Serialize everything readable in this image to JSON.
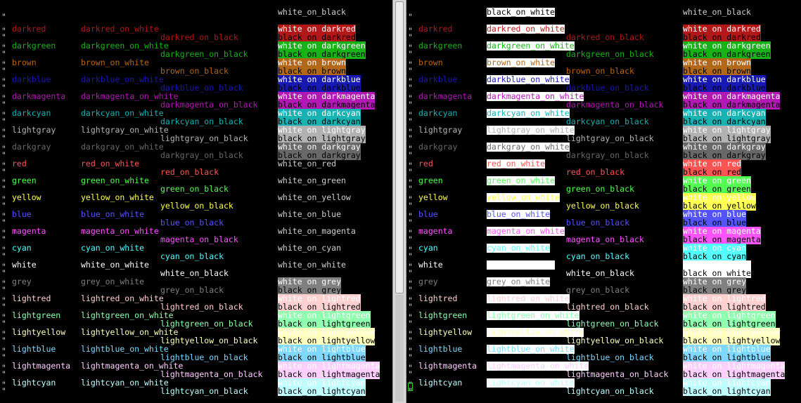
{
  "colors": {
    "black": "#000000",
    "white": "#ffffff",
    "darkred": "#b21818",
    "darkgreen": "#18b218",
    "brown": "#b26818",
    "darkblue": "#1818b2",
    "darkmagenta": "#b218b2",
    "darkcyan": "#18b2b2",
    "lightgray": "#b2b2b2",
    "darkgray": "#686868",
    "red": "#ff5454",
    "green": "#54ff54",
    "yellow": "#ffff54",
    "blue": "#5454ff",
    "magenta": "#ff54ff",
    "cyan": "#54ffff",
    "grey": "#808080",
    "lightred": "#ffd0d0",
    "lightgreen": "#90ffb0",
    "lightyellow": "#ffffc0",
    "lightblue": "#80d8ff",
    "lightmagenta": "#ffd0ff",
    "lightcyan": "#c0ffff",
    "default_fg": "#cfcfcf"
  },
  "panes": [
    {
      "name": "left",
      "top_header": "",
      "top_header_right": "white_on_black",
      "rows": [
        {
          "a": "darkred",
          "b": "darkred_on_white",
          "c": "darkred_on_black",
          "d1": "white_on_darkred",
          "d2": "black_on_darkred"
        },
        {
          "a": "darkgreen",
          "b": "darkgreen_on_white",
          "c": "darkgreen_on_black",
          "d1": "white_on_darkgreen",
          "d2": "black_on_darkgreen"
        },
        {
          "a": "brown",
          "b": "brown_on_white",
          "c": "brown_on_black",
          "d1": "white_on_brown",
          "d2": "black_on_brown"
        },
        {
          "a": "darkblue",
          "b": "darkblue_on_white",
          "c": "darkblue_on_black",
          "d1": "white_on_darkblue",
          "d2": "black_on_darkblue"
        },
        {
          "a": "darkmagenta",
          "b": "darkmagenta_on_white",
          "c": "darkmagenta_on_black",
          "d1": "white_on_darkmagenta",
          "d2": "black_on_darkmagenta"
        },
        {
          "a": "darkcyan",
          "b": "darkcyan_on_white",
          "c": "darkcyan_on_black",
          "d1": "white_on_darkcyan",
          "d2": "black_on_darkcyan"
        },
        {
          "a": "lightgray",
          "b": "lightgray_on_white",
          "c": "lightgray_on_black",
          "d1": "white_on_lightgray",
          "d2": "black_on_lightgray"
        },
        {
          "a": "darkgray",
          "b": "darkgray_on_white",
          "c": "darkgray_on_black",
          "d1": "white_on_darkgray",
          "d2": "black_on_darkgray"
        },
        {
          "a": "red",
          "b": "red_on_white",
          "c": "red_on_black",
          "d1": "white_on_red",
          "d2": "black_on_red"
        },
        {
          "a": "green",
          "b": "green_on_white",
          "c": "green_on_black",
          "d1": "white_on_green",
          "d2": "black_on_green"
        },
        {
          "a": "yellow",
          "b": "yellow_on_white",
          "c": "yellow_on_black",
          "d1": "white_on_yellow",
          "d2": "black_on_yellow"
        },
        {
          "a": "blue",
          "b": "blue_on_white",
          "c": "blue_on_black",
          "d1": "white_on_blue",
          "d2": "black_on_blue"
        },
        {
          "a": "magenta",
          "b": "magenta_on_white",
          "c": "magenta_on_black",
          "d1": "white_on_magenta",
          "d2": "black_on_magenta"
        },
        {
          "a": "cyan",
          "b": "cyan_on_white",
          "c": "cyan_on_black",
          "d1": "white_on_cyan",
          "d2": "black_on_cyan"
        },
        {
          "a": "white",
          "b": "white_on_white",
          "c": "white_on_black",
          "d1": "white_on_white",
          "d2": "black_on_white"
        },
        {
          "a": "grey",
          "b": "grey_on_white",
          "c": "grey_on_black",
          "d1": "white_on_grey",
          "d2": "black_on_grey"
        },
        {
          "a": "lightred",
          "b": "lightred_on_white",
          "c": "lightred_on_black",
          "d1": "white_on_lightred",
          "d2": "black_on_lightred"
        },
        {
          "a": "lightgreen",
          "b": "lightgreen_on_white",
          "c": "lightgreen_on_black",
          "d1": "white_on_lightgreen",
          "d2": "black_on_lightgreen"
        },
        {
          "a": "lightyellow",
          "b": "lightyellow_on_white",
          "c": "lightyellow_on_black",
          "d1": "white_on_lightyellow",
          "d2": "black_on_lightyellow"
        },
        {
          "a": "lightblue",
          "b": "lightblue_on_white",
          "c": "lightblue_on_black",
          "d1": "white_on_lightblue",
          "d2": "black_on_lightblue"
        },
        {
          "a": "lightmagenta",
          "b": "lightmagenta_on_white",
          "c": "lightmagenta_on_black",
          "d1": "white_on_lightmagenta",
          "d2": "black_on_lightmagenta"
        },
        {
          "a": "lightcyan",
          "b": "lightcyan_on_white",
          "c": "lightcyan_on_black",
          "d1": "white_on_lightcyan",
          "d2": "black_on_lightcyan"
        }
      ]
    },
    {
      "name": "right",
      "top_header": "black_on_white",
      "top_header_right": "white_on_black",
      "rows": []
    }
  ],
  "quote_mark": "\"",
  "scrollbar": {
    "label": "scrollbar"
  }
}
